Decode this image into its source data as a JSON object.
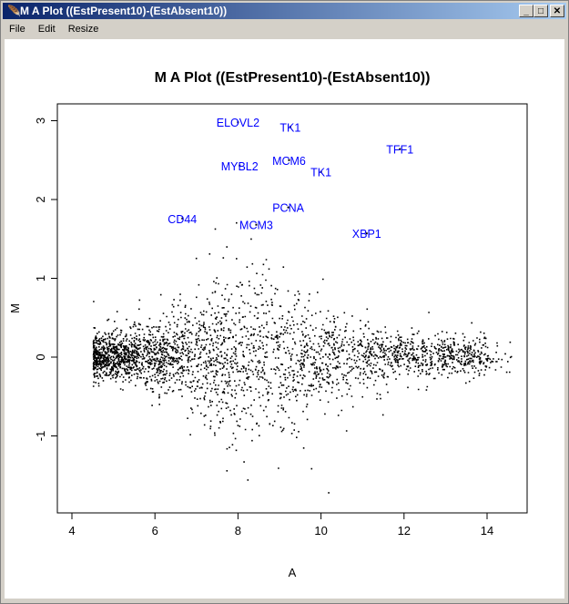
{
  "window": {
    "title": "M A Plot ((EstPresent10)-(EstAbsent10))",
    "icon": "r-feather-icon",
    "buttons": [
      "minimize",
      "maximize",
      "close"
    ]
  },
  "menu": [
    "File",
    "Edit",
    "Resize"
  ],
  "chart_data": {
    "type": "scatter",
    "title": "M A Plot ((EstPresent10)-(EstAbsent10))",
    "xlabel": "A",
    "ylabel": "M",
    "xlim": [
      4.3,
      15.0
    ],
    "ylim": [
      -1.95,
      3.25
    ],
    "xticks": [
      "4",
      "6",
      "8",
      "10",
      "12",
      "14"
    ],
    "yticks": [
      "-1",
      "0",
      "1",
      "2",
      "3"
    ],
    "point_color": "#000000",
    "label_color": "#0000ff",
    "labeled_points": [
      {
        "label": "ELOVL2",
        "A": 8.0,
        "M": 2.98
      },
      {
        "label": "TK1",
        "A": 9.26,
        "M": 2.92
      },
      {
        "label": "TFF1",
        "A": 11.9,
        "M": 2.64
      },
      {
        "label": "MYBL2",
        "A": 8.04,
        "M": 2.43
      },
      {
        "label": "MCM6",
        "A": 9.23,
        "M": 2.5
      },
      {
        "label": "TK1",
        "A": 10.0,
        "M": 2.35
      },
      {
        "label": "PCNA",
        "A": 9.21,
        "M": 1.9
      },
      {
        "label": "CD44",
        "A": 6.66,
        "M": 1.76
      },
      {
        "label": "MCM3",
        "A": 8.44,
        "M": 1.68
      },
      {
        "label": "XBP1",
        "A": 11.1,
        "M": 1.57
      }
    ]
  }
}
